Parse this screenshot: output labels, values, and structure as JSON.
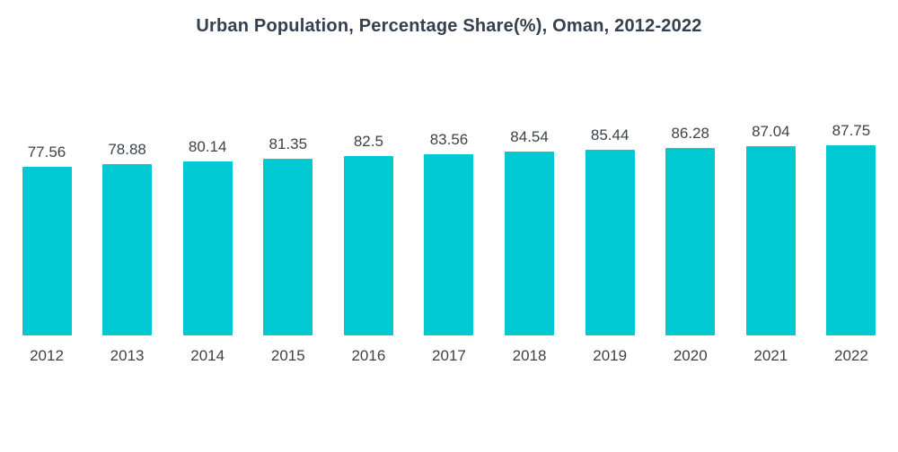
{
  "title": "Urban Population, Percentage Share(%), Oman, 2012-2022",
  "colors": {
    "bar": "#00c9d2",
    "title_text": "#34404f",
    "label_text": "#3d4248",
    "background": "#ffffff"
  },
  "chart_data": {
    "type": "bar",
    "title": "Urban Population, Percentage Share(%), Oman, 2012-2022",
    "categories": [
      "2012",
      "2013",
      "2014",
      "2015",
      "2016",
      "2017",
      "2018",
      "2019",
      "2020",
      "2021",
      "2022"
    ],
    "values": [
      77.56,
      78.88,
      80.14,
      81.35,
      82.5,
      83.56,
      84.54,
      85.44,
      86.28,
      87.04,
      87.75
    ],
    "value_labels": [
      "77.56",
      "78.88",
      "80.14",
      "81.35",
      "82.5",
      "83.56",
      "84.54",
      "85.44",
      "86.28",
      "87.04",
      "87.75"
    ],
    "xlabel": "",
    "ylabel": "",
    "ylim": [
      0,
      100
    ],
    "grid": false,
    "legend": false,
    "value_labels_shown": true,
    "bar_color": "#00c9d2"
  }
}
